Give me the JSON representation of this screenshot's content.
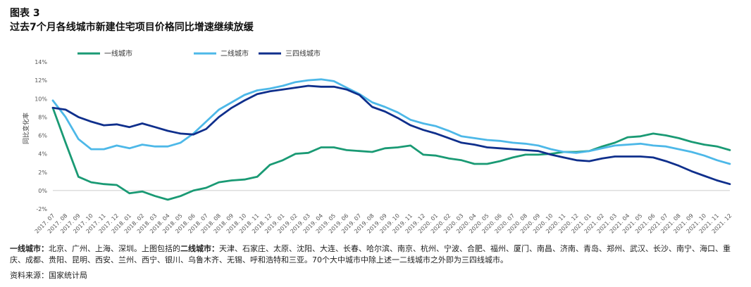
{
  "figure": {
    "label": "图表 3",
    "title": "过去7个月各线城市新建住宅项目价格同比增速继续放缓"
  },
  "notes": {
    "line1_bold_a": "一线城市：",
    "line1_text_a": "北京、广州、上海、深圳。上图包括的",
    "line1_bold_b": "二线城市：",
    "line1_text_b": "天津、石家庄、太原、沈阳、大连、长春、哈尔滨、南京、杭州、宁波、合肥、福州、厦门、南昌、济南、青岛、郑州、武汉、长沙、南宁、海口、重庆、成都、贵阳、昆明、西安、兰州、西宁、银川、乌鲁木齐、无锡、呼和浩特和三亚。70个大中城市中除上述一二线城市之外即为三四线城市。",
    "source": "资料来源：国家统计局"
  },
  "chart_data": {
    "type": "line",
    "ylabel": "同比变化率",
    "ylim": [
      -2,
      14
    ],
    "yticks": [
      "-2%",
      "0%",
      "2%",
      "4%",
      "6%",
      "8%",
      "10%",
      "12%",
      "14%"
    ],
    "grid": false,
    "legend_position": "top-left",
    "categories": [
      "2017. 07",
      "2017. 08",
      "2017. 09",
      "2017. 10",
      "2017. 11",
      "2017. 12",
      "2018. 01",
      "2018. 02",
      "2018. 03",
      "2018. 04",
      "2018. 05",
      "2018. 06",
      "2018. 07",
      "2018. 08",
      "2018. 09",
      "2018. 10",
      "2018. 11",
      "2018. 12",
      "2019. 01",
      "2019. 02",
      "2019. 03",
      "2019. 04",
      "2019. 05",
      "2019. 06",
      "2019. 07",
      "2019. 08",
      "2019. 09",
      "2019. 10",
      "2019. 11",
      "2019. 12",
      "2020. 01",
      "2020. 02",
      "2020. 03",
      "2020. 04",
      "2020. 05",
      "2020. 06",
      "2020. 07",
      "2020. 08",
      "2020. 09",
      "2020. 10",
      "2020. 11",
      "2020. 12",
      "2021. 01",
      "2021. 02",
      "2021. 03",
      "2021. 04",
      "2021. 05",
      "2021. 06",
      "2021. 07",
      "2021. 08",
      "2021. 09",
      "2021. 10",
      "2021. 11",
      "2021. 12"
    ],
    "series": [
      {
        "name": "一线城市",
        "color": "#1a9a74",
        "values": [
          9.0,
          5.2,
          1.5,
          0.9,
          0.7,
          0.6,
          -0.3,
          -0.1,
          -0.6,
          -1.0,
          -0.6,
          0.0,
          0.3,
          0.9,
          1.1,
          1.2,
          1.5,
          2.8,
          3.3,
          4.0,
          4.1,
          4.7,
          4.7,
          4.4,
          4.3,
          4.2,
          4.6,
          4.7,
          4.9,
          3.9,
          3.8,
          3.5,
          3.3,
          2.9,
          2.9,
          3.2,
          3.6,
          3.9,
          3.9,
          4.0,
          4.2,
          4.2,
          4.3,
          4.8,
          5.2,
          5.8,
          5.9,
          6.2,
          6.0,
          5.7,
          5.3,
          5.0,
          4.8,
          4.4
        ]
      },
      {
        "name": "二线城市",
        "color": "#4db8e8",
        "values": [
          9.8,
          8.0,
          5.6,
          4.5,
          4.5,
          4.9,
          4.6,
          5.0,
          4.8,
          4.8,
          5.2,
          6.2,
          7.5,
          8.8,
          9.6,
          10.4,
          10.9,
          11.1,
          11.4,
          11.8,
          12.0,
          12.1,
          11.9,
          11.2,
          10.5,
          9.6,
          9.1,
          8.5,
          7.7,
          7.3,
          7.0,
          6.5,
          5.9,
          5.7,
          5.5,
          5.4,
          5.2,
          5.1,
          4.9,
          4.5,
          4.2,
          4.1,
          4.3,
          4.6,
          4.9,
          5.0,
          5.1,
          4.9,
          4.8,
          4.5,
          4.2,
          3.8,
          3.3,
          2.9
        ]
      },
      {
        "name": "三四线城市",
        "color": "#0f2f8c",
        "values": [
          9.0,
          8.8,
          8.0,
          7.5,
          7.1,
          7.2,
          6.9,
          7.3,
          6.9,
          6.5,
          6.2,
          6.1,
          6.7,
          8.0,
          9.0,
          9.8,
          10.5,
          10.8,
          11.0,
          11.2,
          11.4,
          11.3,
          11.3,
          11.0,
          10.4,
          9.1,
          8.6,
          7.9,
          7.1,
          6.6,
          6.2,
          5.7,
          5.2,
          5.0,
          4.7,
          4.6,
          4.5,
          4.4,
          4.3,
          3.9,
          3.6,
          3.3,
          3.2,
          3.5,
          3.7,
          3.7,
          3.7,
          3.6,
          3.2,
          2.7,
          2.1,
          1.6,
          1.1,
          0.7
        ]
      }
    ]
  }
}
